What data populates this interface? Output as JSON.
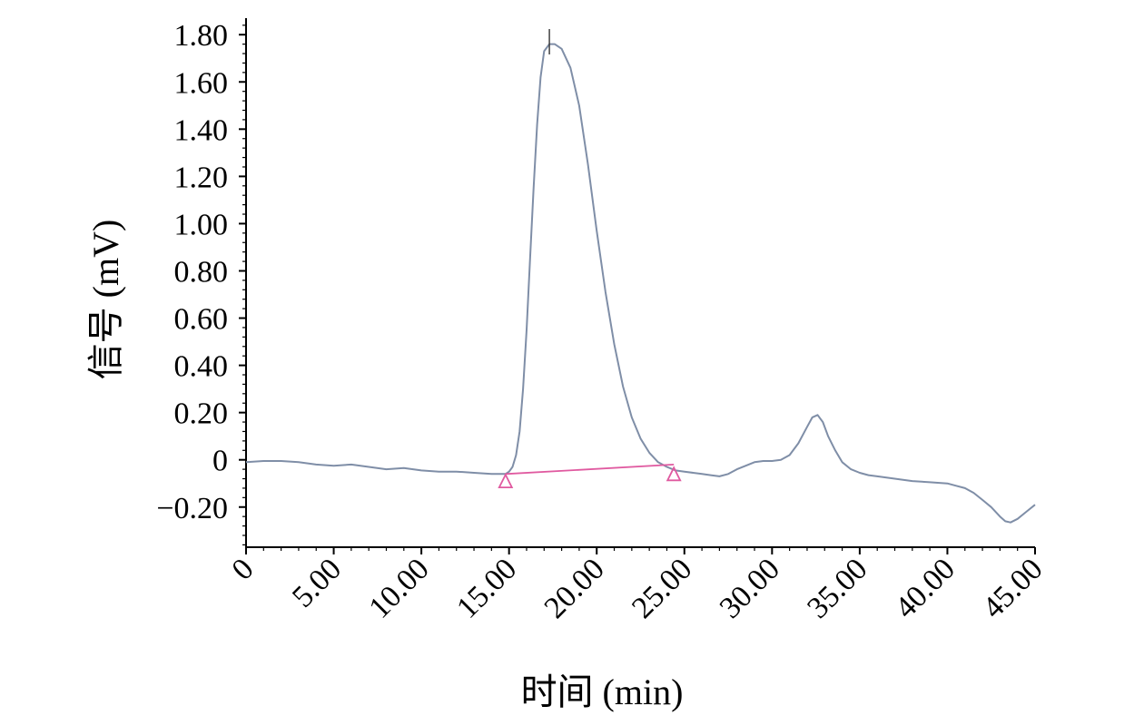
{
  "chart_data": {
    "type": "line",
    "title": "",
    "xlabel": "时间 (min)",
    "ylabel": "信号 (mV)",
    "xlim": [
      0,
      45
    ],
    "ylim": [
      -0.37,
      1.87
    ],
    "x_ticks": [
      0,
      5,
      10,
      15,
      20,
      25,
      30,
      35,
      40,
      45
    ],
    "x_tick_labels": [
      "0",
      "5.00",
      "10.00",
      "15.00",
      "20.00",
      "25.00",
      "30.00",
      "35.00",
      "40.00",
      "45.00"
    ],
    "y_ticks": [
      -0.2,
      0,
      0.2,
      0.4,
      0.6,
      0.8,
      1.0,
      1.2,
      1.4,
      1.6,
      1.8
    ],
    "y_tick_labels": [
      "−0.20",
      "0",
      "0.20",
      "0.40",
      "0.60",
      "0.80",
      "1.00",
      "1.20",
      "1.40",
      "1.60",
      "1.80"
    ],
    "grid": false,
    "legend": "none",
    "series": [
      {
        "color": "#7f8ea7",
        "x": [
          0,
          1,
          2,
          3,
          4,
          5,
          6,
          7,
          8,
          9,
          10,
          11,
          12,
          13,
          14,
          14.5,
          14.8,
          15,
          15.2,
          15.4,
          15.6,
          15.8,
          16,
          16.2,
          16.4,
          16.6,
          16.8,
          17,
          17.3,
          17.6,
          18,
          18.5,
          19,
          19.5,
          20,
          20.5,
          21,
          21.5,
          22,
          22.5,
          23,
          23.5,
          24,
          24.5,
          25,
          25.5,
          26,
          26.5,
          27,
          27.5,
          28,
          28.5,
          29,
          29.5,
          30,
          30.5,
          31,
          31.5,
          32,
          32.3,
          32.6,
          32.9,
          33.2,
          33.6,
          34,
          34.5,
          35,
          35.5,
          36,
          37,
          38,
          39,
          40,
          40.5,
          41,
          41.5,
          42,
          42.5,
          43,
          43.3,
          43.6,
          44,
          44.5,
          45
        ],
        "y": [
          -0.01,
          -0.005,
          -0.005,
          -0.01,
          -0.02,
          -0.025,
          -0.02,
          -0.03,
          -0.04,
          -0.035,
          -0.045,
          -0.05,
          -0.05,
          -0.055,
          -0.06,
          -0.06,
          -0.06,
          -0.05,
          -0.03,
          0.02,
          0.12,
          0.3,
          0.55,
          0.85,
          1.15,
          1.42,
          1.62,
          1.73,
          1.76,
          1.76,
          1.74,
          1.66,
          1.5,
          1.25,
          0.97,
          0.71,
          0.49,
          0.31,
          0.18,
          0.09,
          0.03,
          -0.01,
          -0.03,
          -0.045,
          -0.05,
          -0.055,
          -0.06,
          -0.065,
          -0.07,
          -0.06,
          -0.04,
          -0.025,
          -0.01,
          -0.005,
          -0.005,
          0.0,
          0.02,
          0.07,
          0.14,
          0.18,
          0.19,
          0.16,
          0.1,
          0.04,
          -0.01,
          -0.04,
          -0.055,
          -0.065,
          -0.07,
          -0.08,
          -0.09,
          -0.095,
          -0.1,
          -0.11,
          -0.12,
          -0.14,
          -0.17,
          -0.2,
          -0.24,
          -0.26,
          -0.265,
          -0.25,
          -0.22,
          -0.19
        ]
      }
    ],
    "annotations": [
      {
        "type": "baseline",
        "color": "#e05aa0",
        "x": [
          14.8,
          24.4
        ],
        "y": [
          -0.06,
          -0.02
        ]
      },
      {
        "type": "marker",
        "shape": "triangle",
        "color": "#e05aa0",
        "x": 14.8,
        "y": -0.09
      },
      {
        "type": "marker",
        "shape": "triangle",
        "color": "#e05aa0",
        "x": 24.4,
        "y": -0.06
      },
      {
        "type": "apex-tick",
        "x": 17.3
      }
    ]
  }
}
